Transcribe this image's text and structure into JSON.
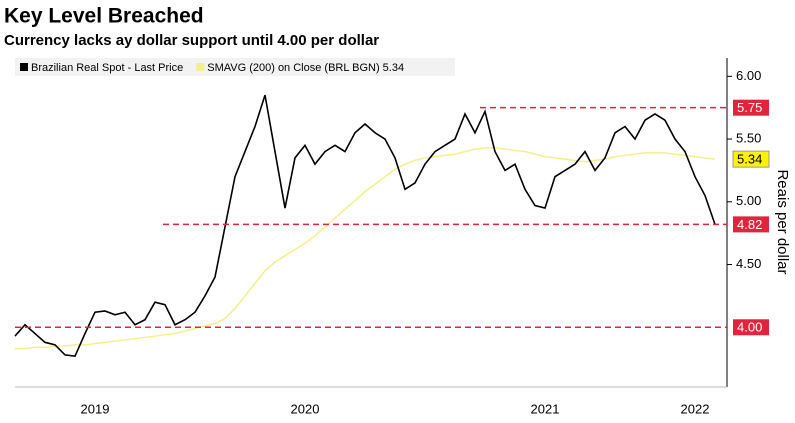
{
  "chart_data": {
    "type": "line",
    "title": "Key Level Breached",
    "subtitle": "Currency lacks ay dollar support until 4.00 per dollar",
    "y_label": "Reais per dollar",
    "categories": [
      null,
      null,
      null,
      null,
      null,
      null,
      null,
      null,
      "2019",
      null,
      null,
      null,
      null,
      null,
      null,
      null,
      null,
      null,
      null,
      null,
      null,
      null,
      null,
      null,
      null,
      null,
      null,
      null,
      null,
      "2020",
      null,
      null,
      null,
      null,
      null,
      null,
      null,
      null,
      null,
      null,
      null,
      null,
      null,
      null,
      null,
      null,
      null,
      null,
      null,
      null,
      null,
      null,
      null,
      "2021",
      null,
      null,
      null,
      null,
      null,
      null,
      null,
      null,
      null,
      null,
      null,
      null,
      null,
      null,
      "2022",
      null,
      null
    ],
    "series": [
      {
        "name": "Brazilian Real Spot - Last Price",
        "color": "#000000",
        "values": [
          3.93,
          4.02,
          3.95,
          3.88,
          3.86,
          3.78,
          3.77,
          3.95,
          4.12,
          4.13,
          4.1,
          4.12,
          4.02,
          4.06,
          4.2,
          4.18,
          4.02,
          4.06,
          4.12,
          4.25,
          4.4,
          4.8,
          5.2,
          5.4,
          5.6,
          5.85,
          5.4,
          4.95,
          5.35,
          5.45,
          5.3,
          5.4,
          5.45,
          5.4,
          5.55,
          5.62,
          5.55,
          5.5,
          5.35,
          5.1,
          5.15,
          5.3,
          5.4,
          5.45,
          5.5,
          5.7,
          5.55,
          5.72,
          5.4,
          5.25,
          5.3,
          5.1,
          4.97,
          4.95,
          5.2,
          5.25,
          5.3,
          5.4,
          5.25,
          5.35,
          5.55,
          5.6,
          5.5,
          5.65,
          5.7,
          5.65,
          5.5,
          5.4,
          5.2,
          5.05,
          4.82
        ]
      },
      {
        "name": "SMAVG (200)  on Close (BRL BGN) 5.34",
        "color": "#f5ef8a",
        "values": [
          3.83,
          3.83,
          3.84,
          3.84,
          3.85,
          3.85,
          3.86,
          3.86,
          3.87,
          3.88,
          3.89,
          3.9,
          3.91,
          3.92,
          3.93,
          3.94,
          3.95,
          3.97,
          3.99,
          4.01,
          4.03,
          4.07,
          4.15,
          4.25,
          4.35,
          4.45,
          4.52,
          4.57,
          4.62,
          4.67,
          4.73,
          4.8,
          4.87,
          4.94,
          5.01,
          5.08,
          5.14,
          5.2,
          5.26,
          5.3,
          5.33,
          5.35,
          5.36,
          5.37,
          5.38,
          5.4,
          5.42,
          5.43,
          5.43,
          5.42,
          5.41,
          5.4,
          5.38,
          5.36,
          5.35,
          5.34,
          5.33,
          5.32,
          5.33,
          5.34,
          5.36,
          5.37,
          5.38,
          5.39,
          5.39,
          5.39,
          5.38,
          5.37,
          5.36,
          5.35,
          5.34
        ]
      }
    ],
    "ylim": [
      3.54,
      6.13
    ],
    "yticks": [
      {
        "value": 4.5,
        "label": "4.50"
      },
      {
        "value": 5,
        "label": "5.00"
      },
      {
        "value": 5.5,
        "label": "5.50"
      },
      {
        "value": 6,
        "label": "6.00"
      }
    ],
    "hlines": [
      5.75,
      4.82,
      {
        "value": 4,
        "label": "4.00"
      }
    ],
    "hline_color": "#e0243c"
  }
}
